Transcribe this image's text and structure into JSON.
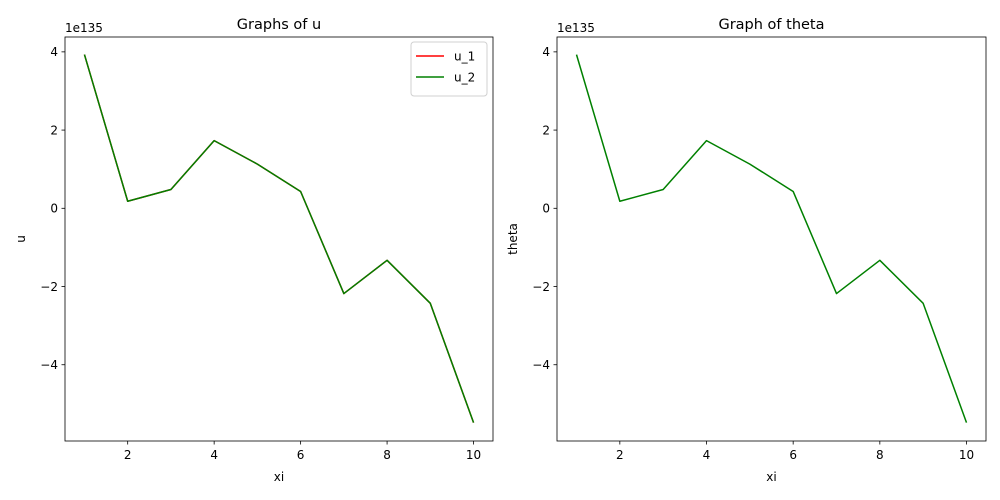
{
  "chart_data": [
    {
      "type": "line",
      "title": "Graphs of u",
      "xlabel": "xi",
      "ylabel": "u",
      "offset_text": "1e135",
      "x": [
        1,
        2,
        3,
        4,
        5,
        6,
        7,
        8,
        9,
        10
      ],
      "xticks": [
        2,
        4,
        6,
        8,
        10
      ],
      "yticks": [
        4,
        2,
        0,
        -2,
        -4
      ],
      "xlim": [
        0.55,
        10.45
      ],
      "ylim": [
        -5.95,
        4.38
      ],
      "grid": false,
      "legend": "top-right",
      "series": [
        {
          "name": "u_1",
          "color": "#ff0000",
          "values": [
            3.93,
            0.18,
            0.48,
            1.73,
            1.13,
            0.43,
            -2.18,
            -1.33,
            -2.43,
            -5.48
          ]
        },
        {
          "name": "u_2",
          "color": "#008000",
          "values": [
            3.93,
            0.18,
            0.48,
            1.73,
            1.13,
            0.43,
            -2.18,
            -1.33,
            -2.43,
            -5.48
          ]
        }
      ]
    },
    {
      "type": "line",
      "title": "Graph of theta",
      "xlabel": "xi",
      "ylabel": "theta",
      "offset_text": "1e135",
      "x": [
        1,
        2,
        3,
        4,
        5,
        6,
        7,
        8,
        9,
        10
      ],
      "xticks": [
        2,
        4,
        6,
        8,
        10
      ],
      "yticks": [
        4,
        2,
        0,
        -2,
        -4
      ],
      "xlim": [
        0.55,
        10.45
      ],
      "ylim": [
        -5.95,
        4.38
      ],
      "grid": false,
      "legend": "none",
      "series": [
        {
          "color": "#008000",
          "values": [
            3.93,
            0.18,
            0.48,
            1.73,
            1.13,
            0.43,
            -2.18,
            -1.33,
            -2.43,
            -5.48
          ]
        }
      ]
    }
  ]
}
